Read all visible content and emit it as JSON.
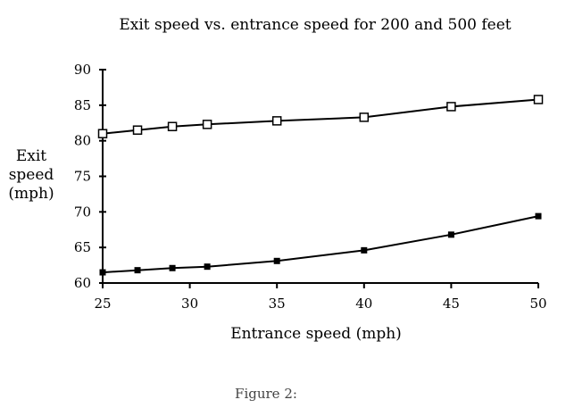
{
  "chart_data": {
    "type": "line",
    "title": "Exit speed vs. entrance speed for 200 and 500 feet",
    "xlabel": "Entrance speed (mph)",
    "ylabel_lines": [
      "Exit",
      "speed",
      "(mph)"
    ],
    "xlim": [
      25,
      50
    ],
    "ylim": [
      60,
      90
    ],
    "xticks": [
      25,
      30,
      35,
      40,
      45,
      50
    ],
    "yticks": [
      60,
      65,
      70,
      75,
      80,
      85,
      90
    ],
    "grid": false,
    "series": [
      {
        "marker": "open-square",
        "x": [
          25,
          27,
          29,
          31,
          35,
          40,
          45,
          50
        ],
        "y": [
          81.0,
          81.5,
          82.0,
          82.3,
          82.8,
          83.3,
          84.8,
          85.8
        ]
      },
      {
        "marker": "filled-square",
        "x": [
          25,
          27,
          29,
          31,
          35,
          40,
          45,
          50
        ],
        "y": [
          61.5,
          61.8,
          62.1,
          62.3,
          63.1,
          64.6,
          66.8,
          69.4
        ]
      }
    ],
    "caption": "Figure 2:"
  }
}
